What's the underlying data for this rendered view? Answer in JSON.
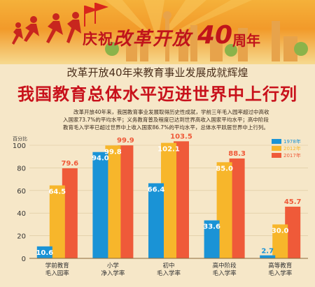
{
  "header": {
    "celebration": {
      "lead": "庆祝",
      "script": "改革开放",
      "number": "40",
      "tail": "周年"
    },
    "subtitle": "改革开放40年来教育事业发展成就辉煌",
    "headline": "我国教育总体水平迈进世界中上行列",
    "intro": "改革开放40年来，我国教育事业发展取得历史性成就，学前三年毛入园率超过中高收入国家73.7%的平均水平；义务教育普及程度已达到世界高收入国家平均水平；高中阶段教育毛入学率已超过世界中上收入国家86.7%的平均水平，总体水平跃居世界中上行列。"
  },
  "colors": {
    "series_1978": "#1a93d6",
    "series_2012": "#f7b62b",
    "series_2017": "#ef5a39",
    "headline": "#c8111b",
    "background": "#f6e7c8"
  },
  "chart_data": {
    "type": "bar",
    "ylabel": "百分比",
    "ylim": [
      0,
      100
    ],
    "yticks": [
      0,
      20,
      40,
      60,
      80,
      100
    ],
    "grid": true,
    "legend_position": "top-right",
    "categories": [
      "学前教育\n毛入园率",
      "小学\n净入学率",
      "初中\n毛入学率",
      "高中阶段\n毛入学率",
      "高等教育\n毛入学率"
    ],
    "series": [
      {
        "name": "1978年",
        "values": [
          10.6,
          94.0,
          66.4,
          33.6,
          2.7
        ]
      },
      {
        "name": "2012年",
        "values": [
          64.5,
          99.8,
          102.1,
          85.0,
          30.0
        ]
      },
      {
        "name": "2017年",
        "values": [
          79.6,
          99.9,
          103.5,
          88.3,
          45.7
        ]
      }
    ]
  }
}
